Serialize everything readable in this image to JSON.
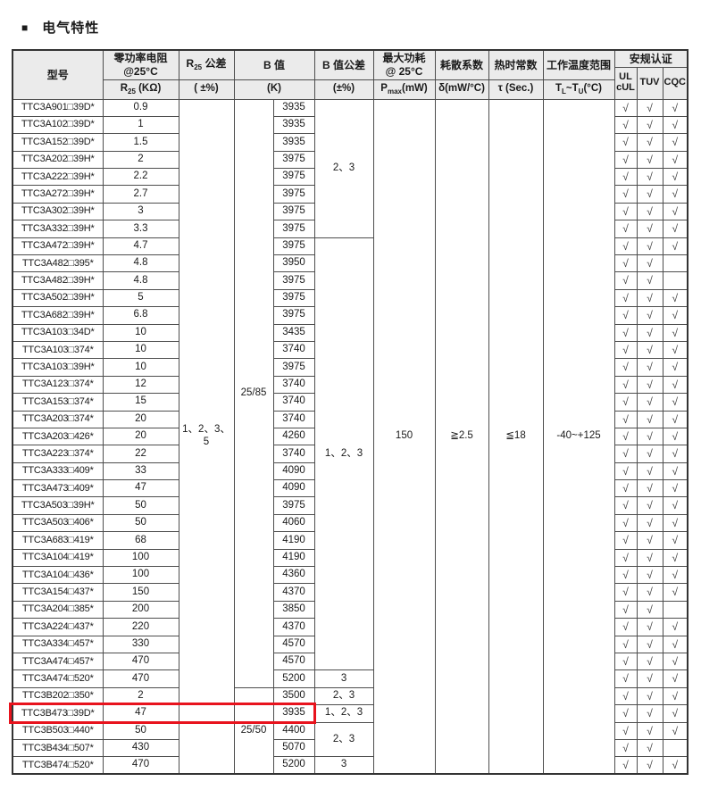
{
  "page": {
    "bullet": "■",
    "title": "电气特性"
  },
  "colors": {
    "highlight_red": "#e8131d",
    "header_bg": "#ebebeb",
    "grid_border": "#4d4d4d"
  },
  "icons": {
    "check": "√"
  },
  "header": {
    "model_col": {
      "label": "型号"
    },
    "r25_col": {
      "label": "零功率电阻\n@25°C",
      "base": "R",
      "sub": "25",
      "unit_rest": " (KΩ)"
    },
    "r25_tol_col": {
      "base": "R",
      "sub": "25",
      "label_rest": " 公差",
      "unit": "( ±%)"
    },
    "b_col": {
      "label": "B 值",
      "unit": "(K)"
    },
    "b_tol_col": {
      "label": "B 值公差",
      "unit": "(±%)"
    },
    "pmax_col": {
      "label": "最大功耗\n@ 25°C",
      "base": "P",
      "sub": "max",
      "unit_rest": "(mW)"
    },
    "delta_col": {
      "label": "耗散系数",
      "unit": "δ(mW/°C)"
    },
    "tau_col": {
      "label": "热时常数",
      "unit": "τ (Sec.)"
    },
    "trange_col": {
      "label": "工作温度范围",
      "t1": "T",
      "s1": "L",
      "mid": "~T",
      "s2": "U",
      "rest": "(°C)"
    },
    "cert_col": {
      "label": "安规认证",
      "subs": [
        "UL\ncUL",
        "TUV",
        "CQC"
      ]
    }
  },
  "shared": {
    "r25_tolerance": "1、2、3、\n5",
    "pmax": "150",
    "dissipation": "≧2.5",
    "thermal_time": "≦18",
    "temp_range": "-40~+125",
    "b_temp_groups": [
      {
        "value": "25/85",
        "rows": 34
      },
      {
        "value": "25/50",
        "rows": 5
      }
    ],
    "b_tolerance_groups": [
      {
        "value": "2、3",
        "rows": 8
      },
      {
        "value": "1、2、3",
        "rows": 25
      },
      {
        "value": "3",
        "rows": 1
      },
      {
        "value": "2、3",
        "rows": 1
      },
      {
        "value": "1、2、3",
        "rows": 1
      },
      {
        "value": "2、3",
        "rows": 2
      },
      {
        "value": "3",
        "rows": 1
      }
    ]
  },
  "rows": [
    {
      "model": "TTC3A901□39D*",
      "r25": "0.9",
      "b": "3935",
      "certs": [
        1,
        1,
        1
      ]
    },
    {
      "model": "TTC3A102□39D*",
      "r25": "1",
      "b": "3935",
      "certs": [
        1,
        1,
        1
      ]
    },
    {
      "model": "TTC3A152□39D*",
      "r25": "1.5",
      "b": "3935",
      "certs": [
        1,
        1,
        1
      ]
    },
    {
      "model": "TTC3A202□39H*",
      "r25": "2",
      "b": "3975",
      "certs": [
        1,
        1,
        1
      ]
    },
    {
      "model": "TTC3A222□39H*",
      "r25": "2.2",
      "b": "3975",
      "certs": [
        1,
        1,
        1
      ]
    },
    {
      "model": "TTC3A272□39H*",
      "r25": "2.7",
      "b": "3975",
      "certs": [
        1,
        1,
        1
      ]
    },
    {
      "model": "TTC3A302□39H*",
      "r25": "3",
      "b": "3975",
      "certs": [
        1,
        1,
        1
      ]
    },
    {
      "model": "TTC3A332□39H*",
      "r25": "3.3",
      "b": "3975",
      "certs": [
        1,
        1,
        1
      ]
    },
    {
      "model": "TTC3A472□39H*",
      "r25": "4.7",
      "b": "3975",
      "certs": [
        1,
        1,
        1
      ]
    },
    {
      "model": "TTC3A482□395*",
      "r25": "4.8",
      "b": "3950",
      "certs": [
        1,
        1,
        0
      ]
    },
    {
      "model": "TTC3A482□39H*",
      "r25": "4.8",
      "b": "3975",
      "certs": [
        1,
        1,
        0
      ]
    },
    {
      "model": "TTC3A502□39H*",
      "r25": "5",
      "b": "3975",
      "certs": [
        1,
        1,
        1
      ]
    },
    {
      "model": "TTC3A682□39H*",
      "r25": "6.8",
      "b": "3975",
      "certs": [
        1,
        1,
        1
      ]
    },
    {
      "model": "TTC3A103□34D*",
      "r25": "10",
      "b": "3435",
      "certs": [
        1,
        1,
        1
      ]
    },
    {
      "model": "TTC3A103□374*",
      "r25": "10",
      "b": "3740",
      "certs": [
        1,
        1,
        1
      ]
    },
    {
      "model": "TTC3A103□39H*",
      "r25": "10",
      "b": "3975",
      "certs": [
        1,
        1,
        1
      ]
    },
    {
      "model": "TTC3A123□374*",
      "r25": "12",
      "b": "3740",
      "certs": [
        1,
        1,
        1
      ]
    },
    {
      "model": "TTC3A153□374*",
      "r25": "15",
      "b": "3740",
      "certs": [
        1,
        1,
        1
      ]
    },
    {
      "model": "TTC3A203□374*",
      "r25": "20",
      "b": "3740",
      "certs": [
        1,
        1,
        1
      ]
    },
    {
      "model": "TTC3A203□426*",
      "r25": "20",
      "b": "4260",
      "certs": [
        1,
        1,
        1
      ]
    },
    {
      "model": "TTC3A223□374*",
      "r25": "22",
      "b": "3740",
      "certs": [
        1,
        1,
        1
      ]
    },
    {
      "model": "TTC3A333□409*",
      "r25": "33",
      "b": "4090",
      "certs": [
        1,
        1,
        1
      ]
    },
    {
      "model": "TTC3A473□409*",
      "r25": "47",
      "b": "4090",
      "certs": [
        1,
        1,
        1
      ]
    },
    {
      "model": "TTC3A503□39H*",
      "r25": "50",
      "b": "3975",
      "certs": [
        1,
        1,
        1
      ]
    },
    {
      "model": "TTC3A503□406*",
      "r25": "50",
      "b": "4060",
      "certs": [
        1,
        1,
        1
      ]
    },
    {
      "model": "TTC3A683□419*",
      "r25": "68",
      "b": "4190",
      "certs": [
        1,
        1,
        1
      ]
    },
    {
      "model": "TTC3A104□419*",
      "r25": "100",
      "b": "4190",
      "certs": [
        1,
        1,
        1
      ]
    },
    {
      "model": "TTC3A104□436*",
      "r25": "100",
      "b": "4360",
      "certs": [
        1,
        1,
        1
      ]
    },
    {
      "model": "TTC3A154□437*",
      "r25": "150",
      "b": "4370",
      "certs": [
        1,
        1,
        1
      ]
    },
    {
      "model": "TTC3A204□385*",
      "r25": "200",
      "b": "3850",
      "certs": [
        1,
        1,
        0
      ]
    },
    {
      "model": "TTC3A224□437*",
      "r25": "220",
      "b": "4370",
      "certs": [
        1,
        1,
        1
      ]
    },
    {
      "model": "TTC3A334□457*",
      "r25": "330",
      "b": "4570",
      "certs": [
        1,
        1,
        1
      ]
    },
    {
      "model": "TTC3A474□457*",
      "r25": "470",
      "b": "4570",
      "certs": [
        1,
        1,
        1
      ]
    },
    {
      "model": "TTC3A474□520*",
      "r25": "470",
      "b": "5200",
      "certs": [
        1,
        1,
        1
      ]
    },
    {
      "model": "TTC3B202□350*",
      "r25": "2",
      "b": "3500",
      "certs": [
        1,
        1,
        1
      ]
    },
    {
      "model": "TTC3B473□39D*",
      "r25": "47",
      "b": "3935",
      "certs": [
        1,
        1,
        1
      ],
      "highlight": true
    },
    {
      "model": "TTC3B503□440*",
      "r25": "50",
      "b": "4400",
      "certs": [
        1,
        1,
        1
      ]
    },
    {
      "model": "TTC3B434□507*",
      "r25": "430",
      "b": "5070",
      "certs": [
        1,
        1,
        0
      ]
    },
    {
      "model": "TTC3B474□520*",
      "r25": "470",
      "b": "5200",
      "certs": [
        1,
        1,
        1
      ]
    }
  ],
  "annotation": {
    "description": "red highlight box around row TTC3B473□39D* spanning model through B-value columns",
    "row": 36
  }
}
